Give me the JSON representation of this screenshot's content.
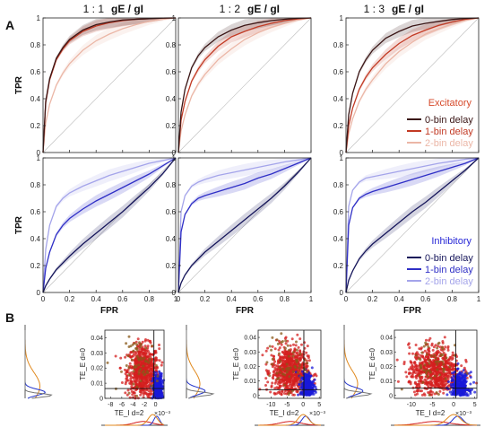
{
  "panel_labels": {
    "a": "A",
    "b": "B"
  },
  "column_titles": [
    {
      "ratio": "1 : 1",
      "expr": "gE / gI"
    },
    {
      "ratio": "1 : 2",
      "expr": "gE / gI"
    },
    {
      "ratio": "1 : 3",
      "expr": "gE / gI"
    }
  ],
  "axes": {
    "fpr_label": "FPR",
    "tpr_label": "TPR",
    "xticks": [
      "0",
      "0.2",
      "0.4",
      "0.6",
      "0.8",
      "1"
    ],
    "yticks": [
      "0",
      "0.2",
      "0.4",
      "0.6",
      "0.8",
      "1"
    ]
  },
  "legend_excitatory": {
    "title": "Excitatory",
    "title_color": "#d64a2b",
    "items": [
      {
        "label": "0-bin delay",
        "color": "#3a1515"
      },
      {
        "label": "1-bin delay",
        "color": "#c23a24"
      },
      {
        "label": "2-bin delay",
        "color": "#ebb6a6"
      }
    ]
  },
  "legend_inhibitory": {
    "title": "Inhibitory",
    "title_color": "#2626d6",
    "items": [
      {
        "label": "0-bin delay",
        "color": "#15155a"
      },
      {
        "label": "1-bin delay",
        "color": "#2f2fc6"
      },
      {
        "label": "2-bin delay",
        "color": "#a4a4ea"
      }
    ]
  },
  "scatter_labels": {
    "ylabel": "TE_E d=0",
    "xlabel": "TE_I d=2",
    "exponent": "×10⁻³"
  },
  "chart_data": [
    {
      "type": "line",
      "panel": "A",
      "row": "excitatory",
      "column": "1 : 1",
      "xlabel": "",
      "ylabel": "TPR",
      "xlim": [
        0,
        1
      ],
      "ylim": [
        0,
        1
      ],
      "x": [
        0,
        0.02,
        0.05,
        0.1,
        0.15,
        0.2,
        0.3,
        0.4,
        0.5,
        0.6,
        0.7,
        0.8,
        0.9,
        1
      ],
      "series": [
        {
          "name": "0-bin delay",
          "values": [
            0,
            0.38,
            0.55,
            0.7,
            0.78,
            0.84,
            0.91,
            0.95,
            0.97,
            0.985,
            0.99,
            0.995,
            0.999,
            1
          ]
        },
        {
          "name": "1-bin delay",
          "values": [
            0,
            0.37,
            0.54,
            0.69,
            0.77,
            0.83,
            0.9,
            0.94,
            0.965,
            0.98,
            0.99,
            0.995,
            0.999,
            1
          ]
        },
        {
          "name": "2-bin delay",
          "values": [
            0,
            0.22,
            0.36,
            0.5,
            0.59,
            0.66,
            0.76,
            0.83,
            0.88,
            0.92,
            0.95,
            0.975,
            0.99,
            1
          ]
        }
      ]
    },
    {
      "type": "line",
      "panel": "A",
      "row": "excitatory",
      "column": "1 : 2",
      "xlim": [
        0,
        1
      ],
      "ylim": [
        0,
        1
      ],
      "x": [
        0,
        0.02,
        0.05,
        0.1,
        0.15,
        0.2,
        0.3,
        0.4,
        0.5,
        0.6,
        0.7,
        0.8,
        0.9,
        1
      ],
      "series": [
        {
          "name": "0-bin delay",
          "values": [
            0,
            0.3,
            0.47,
            0.63,
            0.72,
            0.78,
            0.86,
            0.91,
            0.945,
            0.965,
            0.98,
            0.99,
            0.997,
            1
          ]
        },
        {
          "name": "1-bin delay",
          "values": [
            0,
            0.24,
            0.38,
            0.53,
            0.62,
            0.69,
            0.79,
            0.86,
            0.9,
            0.935,
            0.96,
            0.98,
            0.993,
            1
          ]
        },
        {
          "name": "2-bin delay",
          "values": [
            0,
            0.16,
            0.28,
            0.42,
            0.51,
            0.58,
            0.69,
            0.77,
            0.84,
            0.89,
            0.93,
            0.96,
            0.985,
            1
          ]
        }
      ]
    },
    {
      "type": "line",
      "panel": "A",
      "row": "excitatory",
      "column": "1 : 3",
      "xlim": [
        0,
        1
      ],
      "ylim": [
        0,
        1
      ],
      "x": [
        0,
        0.02,
        0.05,
        0.1,
        0.15,
        0.2,
        0.3,
        0.4,
        0.5,
        0.6,
        0.7,
        0.8,
        0.9,
        1
      ],
      "series": [
        {
          "name": "0-bin delay",
          "values": [
            0,
            0.28,
            0.44,
            0.6,
            0.69,
            0.76,
            0.85,
            0.9,
            0.94,
            0.96,
            0.975,
            0.988,
            0.996,
            1
          ]
        },
        {
          "name": "1-bin delay",
          "values": [
            0,
            0.2,
            0.33,
            0.47,
            0.56,
            0.63,
            0.73,
            0.81,
            0.87,
            0.91,
            0.945,
            0.97,
            0.99,
            1
          ]
        },
        {
          "name": "2-bin delay",
          "values": [
            0,
            0.14,
            0.25,
            0.38,
            0.47,
            0.54,
            0.66,
            0.75,
            0.82,
            0.88,
            0.92,
            0.955,
            0.982,
            1
          ]
        }
      ]
    },
    {
      "type": "line",
      "panel": "A",
      "row": "inhibitory",
      "column": "1 : 1",
      "xlabel": "FPR",
      "ylabel": "TPR",
      "xlim": [
        0,
        1
      ],
      "ylim": [
        0,
        1
      ],
      "x": [
        0,
        0.02,
        0.05,
        0.1,
        0.15,
        0.2,
        0.3,
        0.4,
        0.5,
        0.6,
        0.7,
        0.8,
        0.9,
        1
      ],
      "series": [
        {
          "name": "0-bin delay",
          "values": [
            0,
            0.05,
            0.1,
            0.17,
            0.22,
            0.27,
            0.36,
            0.44,
            0.52,
            0.6,
            0.69,
            0.78,
            0.88,
            1
          ]
        },
        {
          "name": "1-bin delay",
          "values": [
            0,
            0.18,
            0.3,
            0.43,
            0.5,
            0.55,
            0.62,
            0.68,
            0.73,
            0.78,
            0.83,
            0.88,
            0.94,
            1
          ]
        },
        {
          "name": "2-bin delay",
          "values": [
            0,
            0.32,
            0.5,
            0.64,
            0.7,
            0.74,
            0.79,
            0.83,
            0.87,
            0.9,
            0.93,
            0.96,
            0.98,
            1
          ]
        }
      ]
    },
    {
      "type": "line",
      "panel": "A",
      "row": "inhibitory",
      "column": "1 : 2",
      "xlabel": "FPR",
      "xlim": [
        0,
        1
      ],
      "ylim": [
        0,
        1
      ],
      "x": [
        0,
        0.02,
        0.05,
        0.1,
        0.15,
        0.2,
        0.3,
        0.4,
        0.5,
        0.6,
        0.7,
        0.8,
        0.9,
        1
      ],
      "series": [
        {
          "name": "0-bin delay",
          "values": [
            0,
            0.07,
            0.13,
            0.2,
            0.25,
            0.3,
            0.38,
            0.46,
            0.54,
            0.62,
            0.7,
            0.79,
            0.89,
            1
          ]
        },
        {
          "name": "1-bin delay",
          "values": [
            0,
            0.45,
            0.58,
            0.66,
            0.7,
            0.72,
            0.75,
            0.78,
            0.81,
            0.85,
            0.88,
            0.92,
            0.96,
            1
          ]
        },
        {
          "name": "2-bin delay",
          "values": [
            0,
            0.6,
            0.72,
            0.79,
            0.82,
            0.84,
            0.87,
            0.89,
            0.91,
            0.93,
            0.95,
            0.97,
            0.985,
            1
          ]
        }
      ]
    },
    {
      "type": "line",
      "panel": "A",
      "row": "inhibitory",
      "column": "1 : 3",
      "xlabel": "FPR",
      "xlim": [
        0,
        1
      ],
      "ylim": [
        0,
        1
      ],
      "x": [
        0,
        0.02,
        0.05,
        0.1,
        0.15,
        0.2,
        0.3,
        0.4,
        0.5,
        0.6,
        0.7,
        0.8,
        0.9,
        1
      ],
      "series": [
        {
          "name": "0-bin delay",
          "values": [
            0,
            0.09,
            0.16,
            0.25,
            0.31,
            0.36,
            0.44,
            0.52,
            0.6,
            0.67,
            0.75,
            0.83,
            0.91,
            1
          ]
        },
        {
          "name": "1-bin delay",
          "values": [
            0,
            0.5,
            0.63,
            0.7,
            0.73,
            0.75,
            0.78,
            0.81,
            0.84,
            0.87,
            0.9,
            0.93,
            0.96,
            1
          ]
        },
        {
          "name": "2-bin delay",
          "values": [
            0,
            0.64,
            0.76,
            0.82,
            0.85,
            0.86,
            0.88,
            0.9,
            0.92,
            0.94,
            0.96,
            0.975,
            0.99,
            1
          ]
        }
      ]
    },
    {
      "type": "scatter",
      "panel": "B",
      "column": "1 : 1",
      "xlabel": "TE_I d=2",
      "ylabel": "TE_E d=0",
      "xlim": [
        -0.009,
        0.0015
      ],
      "ylim": [
        0,
        0.045
      ],
      "xticks": [
        "-8",
        "-6",
        "-4",
        "-2",
        "0"
      ],
      "yticks": [
        "0",
        "0.01",
        "0.02",
        "0.03",
        "0.04"
      ],
      "xtick_values": [
        -0.008,
        -0.006,
        -0.004,
        -0.002,
        0
      ],
      "ytick_values": [
        0,
        0.01,
        0.02,
        0.03,
        0.04
      ],
      "threshold_x": -0.0003,
      "threshold_y": 0.0065,
      "groups": [
        {
          "color": "#d41f1f",
          "cx": -0.0022,
          "cy": 0.018,
          "sx": 0.0014,
          "sy": 0.0085,
          "n": 700
        },
        {
          "color": "#1a1ad8",
          "cx": 0.0004,
          "cy": 0.006,
          "sx": 0.0004,
          "sy": 0.005,
          "n": 320
        },
        {
          "color": "#8a5a1a",
          "cx": -0.0025,
          "cy": 0.022,
          "sx": 0.0016,
          "sy": 0.009,
          "n": 60
        }
      ],
      "side_kde": [
        {
          "color": "#e0891e",
          "mu": 0.008,
          "sd": 0.009,
          "amp": 0.55
        },
        {
          "color": "#2233cc",
          "mu": 0.004,
          "sd": 0.002,
          "amp": 0.75
        },
        {
          "color": "#777777",
          "mu": 0.002,
          "sd": 0.0012,
          "amp": 1
        }
      ],
      "bottom_kde": [
        {
          "color": "#d41f1f",
          "mu": -0.0022,
          "sd": 0.0016,
          "amp": 0.35
        },
        {
          "color": "#2233cc",
          "mu": 0.0002,
          "sd": 0.0005,
          "amp": 0.85
        },
        {
          "color": "#e0891e",
          "mu": -0.0005,
          "sd": 0.0008,
          "amp": 1
        }
      ]
    },
    {
      "type": "scatter",
      "panel": "B",
      "column": "1 : 2",
      "xlabel": "TE_I d=2",
      "ylabel": "TE_E d=0",
      "xlim": [
        -0.014,
        0.0055
      ],
      "ylim": [
        -0.002,
        0.045
      ],
      "xticks": [
        "-10",
        "-5",
        "0",
        "5"
      ],
      "yticks": [
        "0",
        "0.01",
        "0.02",
        "0.03",
        "0.04"
      ],
      "xtick_values": [
        -0.01,
        -0.005,
        0,
        0.005
      ],
      "ytick_values": [
        0,
        0.01,
        0.02,
        0.03,
        0.04
      ],
      "threshold_x": 0.0002,
      "threshold_y": 0.004,
      "groups": [
        {
          "color": "#d41f1f",
          "cx": -0.0042,
          "cy": 0.017,
          "sx": 0.0028,
          "sy": 0.0085,
          "n": 700
        },
        {
          "color": "#1a1ad8",
          "cx": 0.0012,
          "cy": 0.006,
          "sx": 0.001,
          "sy": 0.0048,
          "n": 300
        },
        {
          "color": "#8a5a1a",
          "cx": -0.005,
          "cy": 0.022,
          "sx": 0.003,
          "sy": 0.009,
          "n": 60
        }
      ],
      "side_kde": [
        {
          "color": "#e0891e",
          "mu": 0.008,
          "sd": 0.009,
          "amp": 0.5
        },
        {
          "color": "#2233cc",
          "mu": 0.003,
          "sd": 0.0025,
          "amp": 0.7
        },
        {
          "color": "#777777",
          "mu": 0.001,
          "sd": 0.0013,
          "amp": 1
        }
      ],
      "bottom_kde": [
        {
          "color": "#d41f1f",
          "mu": -0.004,
          "sd": 0.0032,
          "amp": 0.35
        },
        {
          "color": "#2233cc",
          "mu": 0.0008,
          "sd": 0.0012,
          "amp": 0.85
        },
        {
          "color": "#e0891e",
          "mu": 0.0,
          "sd": 0.0016,
          "amp": 1
        }
      ]
    },
    {
      "type": "scatter",
      "panel": "B",
      "column": "1 : 3",
      "xlabel": "TE_I d=2",
      "ylabel": "TE_E d=0",
      "xlim": [
        -0.014,
        0.0055
      ],
      "ylim": [
        -0.002,
        0.045
      ],
      "xticks": [
        "-10",
        "-5",
        "0",
        "5"
      ],
      "yticks": [
        "0",
        "0.01",
        "0.02",
        "0.03",
        "0.04"
      ],
      "xtick_values": [
        -0.01,
        -0.005,
        0,
        0.005
      ],
      "ytick_values": [
        0,
        0.01,
        0.02,
        0.03,
        0.04
      ],
      "threshold_x": 0.0005,
      "threshold_y": 0.005,
      "groups": [
        {
          "color": "#d41f1f",
          "cx": -0.0045,
          "cy": 0.017,
          "sx": 0.003,
          "sy": 0.0085,
          "n": 700
        },
        {
          "color": "#1a1ad8",
          "cx": 0.0015,
          "cy": 0.006,
          "sx": 0.0011,
          "sy": 0.0048,
          "n": 300
        },
        {
          "color": "#8a5a1a",
          "cx": -0.005,
          "cy": 0.022,
          "sx": 0.003,
          "sy": 0.009,
          "n": 60
        }
      ],
      "side_kde": [
        {
          "color": "#e0891e",
          "mu": 0.008,
          "sd": 0.009,
          "amp": 0.5
        },
        {
          "color": "#2233cc",
          "mu": 0.003,
          "sd": 0.0025,
          "amp": 0.7
        },
        {
          "color": "#777777",
          "mu": 0.001,
          "sd": 0.0013,
          "amp": 1
        }
      ],
      "bottom_kde": [
        {
          "color": "#d41f1f",
          "mu": -0.0045,
          "sd": 0.0034,
          "amp": 0.35
        },
        {
          "color": "#2233cc",
          "mu": 0.001,
          "sd": 0.0012,
          "amp": 0.85
        },
        {
          "color": "#e0891e",
          "mu": 0.0,
          "sd": 0.0016,
          "amp": 1
        }
      ]
    }
  ]
}
